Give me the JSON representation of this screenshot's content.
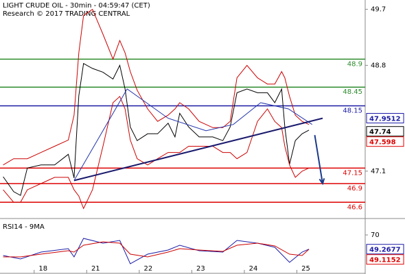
{
  "chart_data": [
    {
      "type": "line",
      "title": "LIGHT CRUDE OIL - 30min - 04:59:47 (CET)",
      "subtitle": "Research © 2017 TRADING CENTRAL",
      "xlim": [
        0.18,
        7.13
      ],
      "ylim": [
        46.35,
        49.85
      ],
      "yticks": [
        47.1,
        48.8,
        49.7
      ],
      "series": [
        {
          "color": "#000000",
          "x": [
            0.24,
            0.44,
            0.57,
            0.7,
            0.96,
            1.22,
            1.48,
            1.59,
            1.68,
            1.77,
            1.94,
            2.14,
            2.33,
            2.46,
            2.56,
            2.66,
            2.79,
            2.99,
            3.18,
            3.38,
            3.51,
            3.6,
            3.77,
            3.97,
            4.23,
            4.42,
            4.56,
            4.69,
            4.88,
            5.08,
            5.27,
            5.41,
            5.54,
            5.6,
            5.69,
            5.8,
            5.93,
            6.06
          ],
          "values": [
            47.01,
            46.77,
            46.71,
            47.15,
            47.2,
            47.2,
            47.37,
            46.99,
            48.31,
            48.83,
            48.75,
            48.69,
            48.58,
            48.8,
            48.42,
            47.81,
            47.59,
            47.7,
            47.7,
            47.87,
            47.65,
            48.03,
            47.81,
            47.65,
            47.65,
            47.59,
            47.81,
            48.36,
            48.42,
            48.36,
            48.36,
            48.2,
            48.42,
            47.81,
            47.21,
            47.59,
            47.7,
            47.76
          ]
        },
        {
          "color": "#cc0000",
          "x": [
            0.24,
            0.44,
            0.57,
            0.7,
            0.96,
            1.22,
            1.48,
            1.59,
            1.68,
            1.77,
            1.94,
            2.14,
            2.33,
            2.46,
            2.56,
            2.66,
            2.79,
            2.99,
            3.18,
            3.38,
            3.51,
            3.6,
            3.77,
            3.97,
            4.23,
            4.42,
            4.56,
            4.69,
            4.88,
            5.08,
            5.27,
            5.41,
            5.54,
            5.6,
            5.69,
            5.8,
            5.93,
            6.06
          ],
          "values": [
            47.2,
            47.3,
            47.3,
            47.3,
            47.4,
            47.5,
            47.6,
            48.0,
            49.0,
            49.6,
            49.7,
            49.3,
            48.9,
            49.2,
            49.0,
            48.7,
            48.4,
            48.1,
            47.9,
            48.0,
            48.1,
            48.2,
            48.1,
            47.9,
            47.8,
            47.8,
            47.9,
            48.6,
            48.8,
            48.6,
            48.5,
            48.5,
            48.7,
            48.6,
            48.3,
            48.0,
            47.9,
            47.85
          ]
        },
        {
          "color": "#cc0000",
          "x": [
            0.24,
            0.44,
            0.57,
            0.7,
            0.96,
            1.22,
            1.48,
            1.59,
            1.68,
            1.77,
            1.94,
            2.14,
            2.33,
            2.46,
            2.56,
            2.66,
            2.79,
            2.99,
            3.18,
            3.38,
            3.51,
            3.6,
            3.77,
            3.97,
            4.23,
            4.42,
            4.56,
            4.69,
            4.88,
            5.08,
            5.27,
            5.41,
            5.54,
            5.6,
            5.69,
            5.8,
            5.93,
            6.06
          ],
          "values": [
            46.8,
            46.6,
            46.6,
            46.8,
            46.9,
            47.0,
            47.0,
            46.8,
            46.7,
            46.5,
            46.8,
            47.5,
            48.2,
            48.3,
            48.1,
            47.6,
            47.3,
            47.2,
            47.3,
            47.4,
            47.4,
            47.4,
            47.5,
            47.5,
            47.5,
            47.4,
            47.4,
            47.3,
            47.4,
            47.9,
            48.1,
            47.9,
            47.8,
            47.5,
            47.2,
            47.0,
            47.1,
            47.15
          ]
        },
        {
          "color": "#2233aa",
          "x": [
            1.59,
            2.6,
            3.38,
            4.1,
            4.62,
            5.14,
            5.67,
            6.12
          ],
          "values": [
            46.95,
            48.42,
            47.95,
            47.75,
            47.85,
            48.2,
            48.1,
            47.85
          ]
        }
      ],
      "levels": [
        {
          "value": 48.9,
          "color": "#2e8b2e"
        },
        {
          "value": 48.45,
          "color": "#2e8b2e"
        },
        {
          "value": 48.15,
          "color": "#1a1aa6"
        },
        {
          "value": 47.15,
          "color": "#dd0000"
        },
        {
          "value": 46.9,
          "color": "#dd0000"
        },
        {
          "value": 46.6,
          "color": "#dd0000"
        }
      ],
      "trendline": {
        "x": [
          1.59,
          6.32
        ],
        "y": [
          46.95,
          47.95
        ],
        "color": "#1a1a6e"
      },
      "arrow": {
        "x": [
          6.17,
          6.32
        ],
        "y": [
          47.68,
          46.9
        ],
        "color": "#1a3a8a"
      },
      "price_tags": [
        {
          "value": 47.9512,
          "color": "#1a1aa6"
        },
        {
          "value": 47.74,
          "color": "#000000"
        },
        {
          "value": 47.598,
          "color": "#dd0000"
        }
      ]
    },
    {
      "type": "line",
      "title": "RSI14 - 9MA",
      "xlim": [
        0.18,
        7.13
      ],
      "ylim": [
        15,
        91
      ],
      "yticks": [
        70
      ],
      "xticks": [
        {
          "value": 1,
          "label": "18"
        },
        {
          "value": 2,
          "label": "21"
        },
        {
          "value": 3,
          "label": "22"
        },
        {
          "value": 4,
          "label": "23"
        },
        {
          "value": 5,
          "label": "24"
        },
        {
          "value": 6,
          "label": "25"
        }
      ],
      "series": [
        {
          "color": "#1a1aa6",
          "x": [
            0.24,
            0.57,
            0.96,
            1.48,
            1.59,
            1.77,
            2.14,
            2.46,
            2.66,
            2.99,
            3.38,
            3.6,
            3.97,
            4.42,
            4.69,
            5.08,
            5.41,
            5.69,
            5.93,
            6.06
          ],
          "values": [
            40,
            35,
            45,
            50,
            38,
            65,
            58,
            62,
            28,
            42,
            48,
            55,
            47,
            45,
            62,
            58,
            52,
            30,
            45,
            49.3
          ]
        },
        {
          "color": "#cc0000",
          "x": [
            0.24,
            0.57,
            0.96,
            1.48,
            1.59,
            1.77,
            2.14,
            2.46,
            2.66,
            2.99,
            3.38,
            3.6,
            3.97,
            4.42,
            4.69,
            5.08,
            5.41,
            5.69,
            5.93,
            6.06
          ],
          "values": [
            38,
            38,
            42,
            47,
            45,
            55,
            60,
            58,
            42,
            38,
            45,
            50,
            48,
            46,
            55,
            58,
            54,
            42,
            40,
            49.1
          ]
        }
      ],
      "price_tags": [
        {
          "value": 49.2677,
          "color": "#1a1aa6"
        },
        {
          "value": 49.1152,
          "color": "#dd0000"
        }
      ]
    }
  ]
}
